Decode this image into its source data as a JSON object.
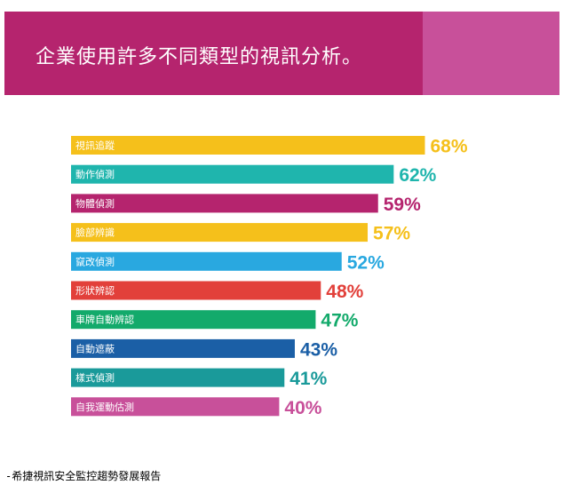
{
  "header": {
    "title": "企業使用許多不同類型的視訊分析。",
    "colors": {
      "primary": "#b5246e",
      "accent": "#c8509a"
    }
  },
  "footer": {
    "source": "-希捷視訊安全監控趨勢發展報告"
  },
  "chart_data": {
    "type": "bar",
    "orientation": "horizontal",
    "categories": [
      "視訊追蹤",
      "動作偵測",
      "物體偵測",
      "臉部辨識",
      "竄改偵測",
      "形狀辨認",
      "車牌自動辨認",
      "自動遮蔽",
      "樣式偵測",
      "自我運動估測"
    ],
    "values": [
      68,
      62,
      59,
      57,
      52,
      48,
      47,
      43,
      41,
      40
    ],
    "value_labels": [
      "68%",
      "62%",
      "59%",
      "57%",
      "52%",
      "48%",
      "47%",
      "43%",
      "41%",
      "40%"
    ],
    "colors": [
      "#f5c01b",
      "#1fb5ad",
      "#b5246e",
      "#f5c01b",
      "#29a8e0",
      "#e2403a",
      "#13aa6b",
      "#1b5fa6",
      "#1a9a9a",
      "#c8509a"
    ],
    "xlim": [
      0,
      100
    ],
    "unit": "%",
    "grid": false,
    "legend": "none"
  }
}
